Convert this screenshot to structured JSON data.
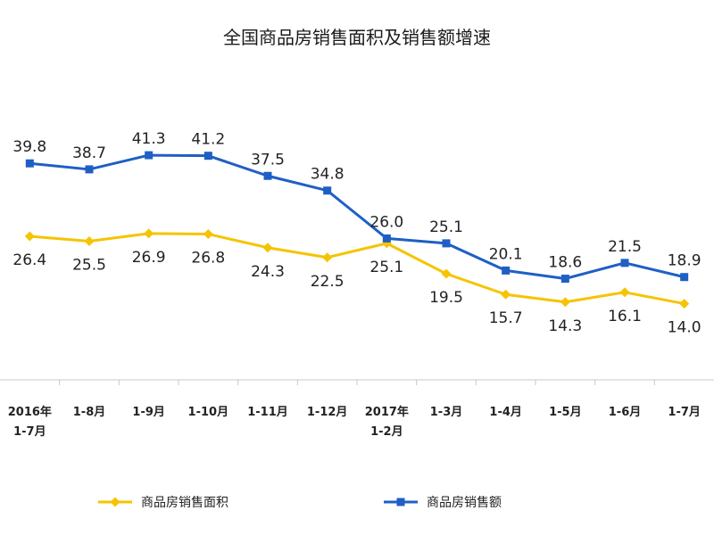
{
  "chart_data": {
    "type": "line",
    "title": "全国商品房销售面积及销售额增速",
    "categories": [
      [
        "2016年",
        "1-7月"
      ],
      [
        "1-8月"
      ],
      [
        "1-9月"
      ],
      [
        "1-10月"
      ],
      [
        "1-11月"
      ],
      [
        "1-12月"
      ],
      [
        "2017年",
        "1-2月"
      ],
      [
        "1-3月"
      ],
      [
        "1-4月"
      ],
      [
        "1-5月"
      ],
      [
        "1-6月"
      ],
      [
        "1-7月"
      ]
    ],
    "series": [
      {
        "name": "商品房销售面积",
        "color": "#f5c400",
        "marker": "diamond",
        "values": [
          26.4,
          25.5,
          26.9,
          26.8,
          24.3,
          22.5,
          25.1,
          19.5,
          15.7,
          14.3,
          16.1,
          14.0
        ]
      },
      {
        "name": "商品房销售额",
        "color": "#1f5fc4",
        "marker": "square",
        "values": [
          39.8,
          38.7,
          41.3,
          41.2,
          37.5,
          34.8,
          26.0,
          25.1,
          20.1,
          18.6,
          21.5,
          18.9
        ]
      }
    ],
    "ylim": [
      0,
      60
    ],
    "grid": false,
    "legend_position": "bottom"
  }
}
